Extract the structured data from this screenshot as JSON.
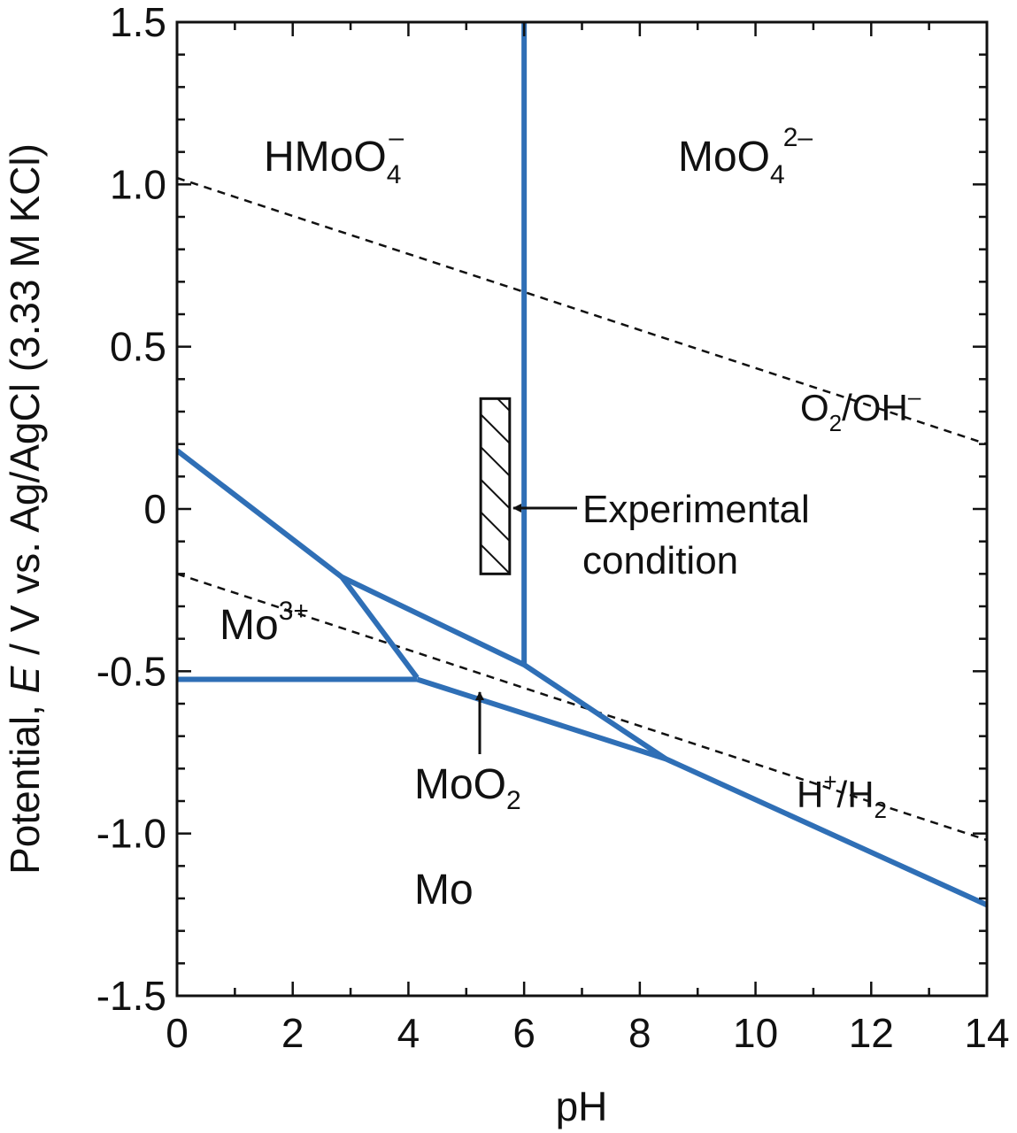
{
  "chart_data": {
    "type": "line",
    "title": "",
    "xlabel": "pH",
    "ylabel_prefix": "Potential, ",
    "ylabel_var": "E",
    "ylabel_suffix": " / V vs. Ag/AgCl (3.33 M KCl)",
    "xlim": [
      0,
      14
    ],
    "ylim": [
      -1.5,
      1.5
    ],
    "x_ticks": [
      0,
      2,
      4,
      6,
      8,
      10,
      12,
      14
    ],
    "x_tick_labels": [
      "0",
      "2",
      "4",
      "6",
      "8",
      "10",
      "12",
      "14"
    ],
    "y_ticks": [
      -1.5,
      -1.0,
      -0.5,
      0,
      0.5,
      1.0,
      1.5
    ],
    "y_tick_labels": [
      "-1.5",
      "-1.0",
      "-0.5",
      "0",
      "0.5",
      "1.0",
      "1.5"
    ],
    "boundary_color": "#2f6fb6",
    "reference_color": "#111111",
    "boundaries": [
      {
        "name": "HMoO4- / MoO4 2- (vertical)",
        "x": [
          6.0,
          6.0
        ],
        "y": [
          1.5,
          -0.48
        ]
      },
      {
        "name": "Mo3+ upper boundary",
        "x": [
          0.0,
          2.85
        ],
        "y": [
          0.18,
          -0.21
        ]
      },
      {
        "name": "MoO2 upper boundary",
        "x": [
          2.85,
          6.0,
          8.45
        ],
        "y": [
          -0.21,
          -0.48,
          -0.77
        ]
      },
      {
        "name": "Mo3+ / MoO2 boundary",
        "x": [
          2.85,
          4.15
        ],
        "y": [
          -0.21,
          -0.52
        ]
      },
      {
        "name": "Mo3+ / Mo boundary",
        "x": [
          0.0,
          4.15
        ],
        "y": [
          -0.525,
          -0.525
        ]
      },
      {
        "name": "MoO2 / Mo boundary",
        "x": [
          4.15,
          8.45,
          14.0
        ],
        "y": [
          -0.525,
          -0.77,
          -1.22
        ]
      }
    ],
    "reference_lines": [
      {
        "name": "O2/OH-",
        "x": [
          0.0,
          14.0
        ],
        "y": [
          1.02,
          0.2
        ]
      },
      {
        "name": "H+/H2",
        "x": [
          0.0,
          14.0
        ],
        "y": [
          -0.2,
          -1.02
        ]
      }
    ],
    "experimental_condition_box": {
      "x": [
        5.25,
        5.75
      ],
      "y": [
        -0.2,
        0.34
      ]
    },
    "region_labels": {
      "hmoo4": {
        "base": "HMoO",
        "sub": "4",
        "sup": "–"
      },
      "moo4": {
        "base": "MoO",
        "sub": "4",
        "sup": "2–"
      },
      "mo3": {
        "base": "Mo",
        "sup": "3+"
      },
      "moo2": {
        "base": "MoO",
        "sub": "2"
      },
      "mo": {
        "base": "Mo"
      }
    },
    "reference_labels": {
      "o2": {
        "a": "O",
        "a_sub": "2",
        "b": "/OH",
        "b_sup": "–"
      },
      "h2": {
        "a": "H",
        "a_sup": "+",
        "b": "/H",
        "b_sub": "2"
      }
    },
    "annotations": {
      "experimental_line1": "Experimental",
      "experimental_line2": "condition"
    }
  }
}
